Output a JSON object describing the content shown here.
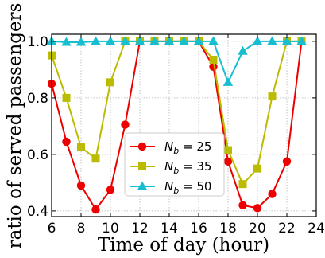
{
  "chart_data": {
    "type": "line",
    "xlabel": "Time of day (hour)",
    "ylabel": "ratio of served passengers",
    "xlim": [
      6,
      24
    ],
    "ylim": [
      0.38,
      1.025
    ],
    "xticks": [
      6,
      8,
      10,
      12,
      14,
      16,
      18,
      20,
      22,
      24
    ],
    "yticks": [
      0.4,
      0.6,
      0.8,
      1.0
    ],
    "xtick_labels": [
      "6",
      "8",
      "10",
      "12",
      "14",
      "16",
      "18",
      "20",
      "22",
      "24"
    ],
    "ytick_labels": [
      "0.4",
      "0.6",
      "0.8",
      "1.0"
    ],
    "grid": true,
    "legend_position": "center",
    "x": [
      6,
      7,
      8,
      9,
      10,
      11,
      12,
      13,
      14,
      15,
      16,
      17,
      18,
      19,
      20,
      21,
      22,
      23
    ],
    "series": [
      {
        "name_prefix": "N",
        "name_sub": "b",
        "name_value": " = 25",
        "color": "#ee0000",
        "marker": "circle",
        "values": [
          0.85,
          0.645,
          0.49,
          0.405,
          0.475,
          0.705,
          1.0,
          1.0,
          1.0,
          1.0,
          1.0,
          0.91,
          0.575,
          0.42,
          0.41,
          0.46,
          0.575,
          1.0
        ]
      },
      {
        "name_prefix": "N",
        "name_sub": "b",
        "name_value": " = 35",
        "color": "#bbbb00",
        "marker": "square",
        "values": [
          0.95,
          0.8,
          0.625,
          0.585,
          0.855,
          1.0,
          1.0,
          1.0,
          1.0,
          1.0,
          1.0,
          0.935,
          0.615,
          0.495,
          0.55,
          0.805,
          1.0,
          1.0
        ]
      },
      {
        "name_prefix": "N",
        "name_sub": "b",
        "name_value": " = 50",
        "color": "#17becf",
        "marker": "triangle",
        "values": [
          1.0,
          0.997,
          0.997,
          1.0,
          1.0,
          1.0,
          1.0,
          1.0,
          1.0,
          1.0,
          1.0,
          1.0,
          0.855,
          0.965,
          1.0,
          1.0,
          1.0,
          1.0
        ]
      }
    ]
  }
}
